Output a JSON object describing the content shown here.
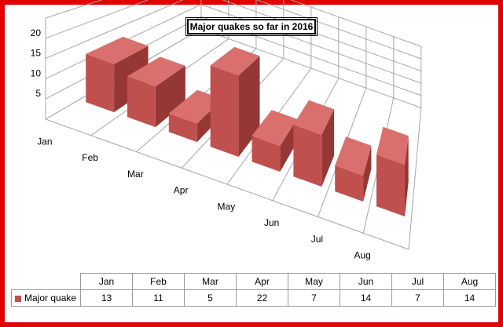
{
  "chart_data": {
    "type": "bar",
    "title": "Major quakes so far in 2016",
    "categories": [
      "Jan",
      "Feb",
      "Mar",
      "Apr",
      "May",
      "Jun",
      "Jul",
      "Aug"
    ],
    "series": [
      {
        "name": "Major quake",
        "values": [
          13,
          11,
          5,
          22,
          7,
          14,
          7,
          14
        ]
      }
    ],
    "yticks": [
      "5",
      "10",
      "15",
      "20"
    ],
    "ylim": [
      0,
      25
    ],
    "grid": true,
    "legend": "data-table",
    "bar_color": "#c0504d",
    "bar_dark": "#953735",
    "bar_light": "#d9706d"
  }
}
